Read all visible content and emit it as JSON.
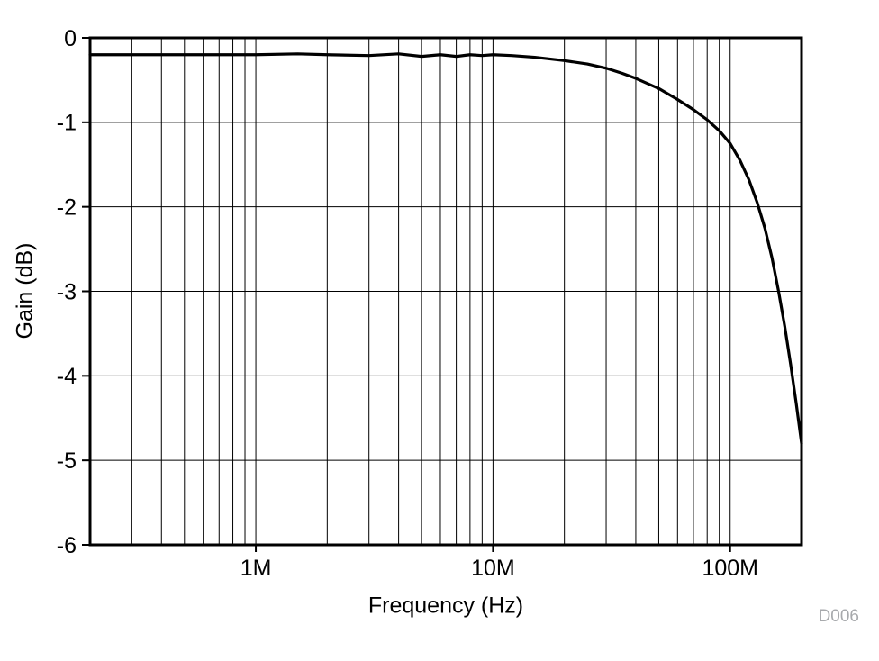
{
  "chart_data": {
    "type": "line",
    "title": "",
    "xlabel": "Frequency (Hz)",
    "ylabel": "Gain (dB)",
    "xscale": "log",
    "xlim": [
      200000,
      200000000
    ],
    "ylim": [
      -6,
      0
    ],
    "yticks": [
      0,
      -1,
      -2,
      -3,
      -4,
      -5,
      -6
    ],
    "ytick_labels": [
      "0",
      "-1",
      "-2",
      "-3",
      "-4",
      "-5",
      "-6"
    ],
    "xticks": [
      {
        "value": 1000000,
        "label": "1M"
      },
      {
        "value": 10000000,
        "label": "10M"
      },
      {
        "value": 100000000,
        "label": "100M"
      }
    ],
    "grid": true,
    "legend": "none",
    "series": [
      {
        "name": "gain",
        "color": "#000000",
        "x": [
          200000,
          300000,
          400000,
          500000,
          700000,
          1000000,
          1500000,
          2000000,
          3000000,
          4000000,
          5000000,
          6000000,
          7000000,
          8000000,
          9000000,
          10000000,
          12000000,
          15000000,
          20000000,
          25000000,
          30000000,
          35000000,
          40000000,
          50000000,
          60000000,
          70000000,
          80000000,
          90000000,
          100000000,
          110000000,
          120000000,
          130000000,
          140000000,
          150000000,
          160000000,
          170000000,
          180000000,
          190000000,
          200000000
        ],
        "y": [
          -0.2,
          -0.2,
          -0.2,
          -0.2,
          -0.2,
          -0.2,
          -0.19,
          -0.2,
          -0.21,
          -0.19,
          -0.22,
          -0.2,
          -0.22,
          -0.2,
          -0.21,
          -0.2,
          -0.21,
          -0.23,
          -0.27,
          -0.31,
          -0.36,
          -0.42,
          -0.48,
          -0.6,
          -0.73,
          -0.85,
          -0.97,
          -1.1,
          -1.25,
          -1.45,
          -1.68,
          -1.95,
          -2.25,
          -2.6,
          -3.0,
          -3.42,
          -3.87,
          -4.33,
          -4.8
        ]
      }
    ],
    "annotations": [
      "D006"
    ]
  },
  "labels": {
    "xlabel": "Frequency (Hz)",
    "ylabel": "Gain (dB)",
    "watermark": "D006"
  }
}
